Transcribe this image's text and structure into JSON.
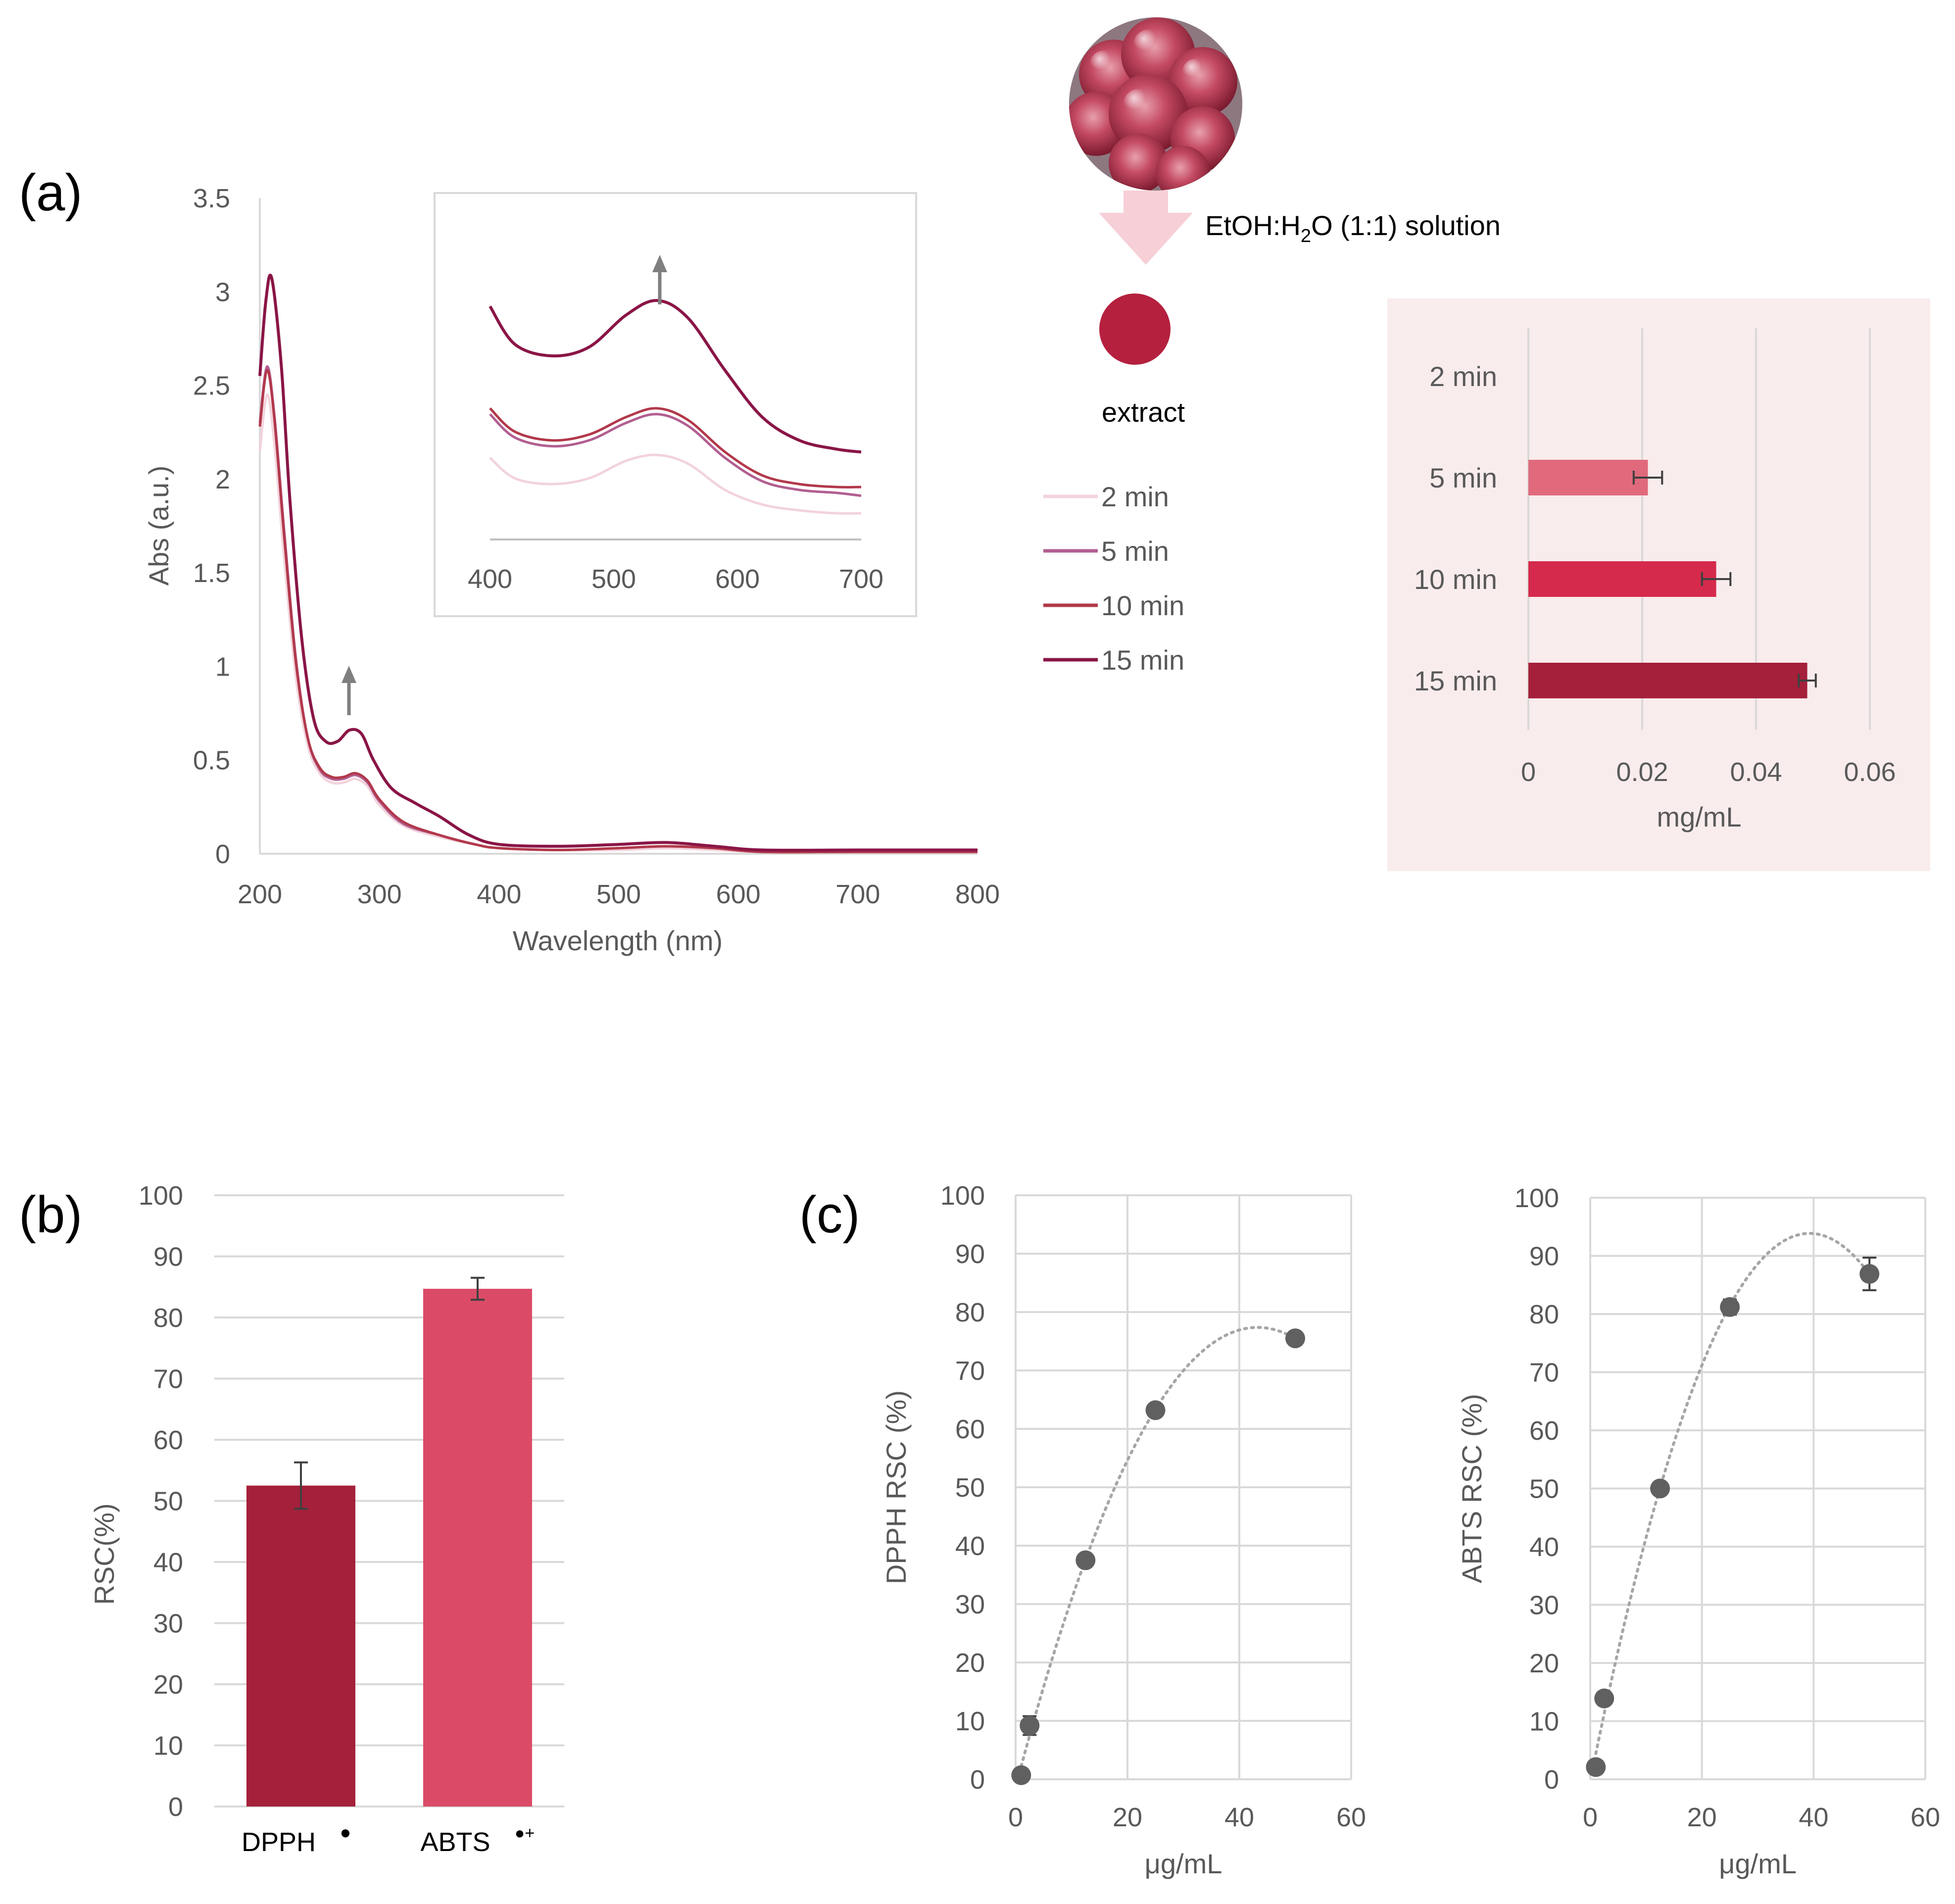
{
  "panel_labels": {
    "a": "(a)",
    "b": "(b)",
    "c": "(c)"
  },
  "schematic": {
    "solution_label_prefix": "EtOH:H",
    "solution_label_sub": "2",
    "solution_label_suffix": "O (1:1) solution",
    "extract_label": "extract",
    "bead_color": "#c44a63",
    "extract_color": "#b5203e",
    "arrow_color": "#f6cfd7"
  },
  "colors": {
    "2 min": "#f2d3dc",
    "5 min": "#b25e91",
    "10 min": "#b2384a",
    "15 min": "#8a1546",
    "bar_5": "#e06a7c",
    "bar_10": "#d52a4b",
    "bar_15": "#a5203a",
    "dpph_bar": "#a5203a",
    "abts_bar": "#db4b67",
    "point": "#606060"
  },
  "chart_data": [
    {
      "id": "uvvis",
      "type": "line",
      "xlabel": "Wavelength (nm)",
      "ylabel": "Abs (a.u.)",
      "xlim": [
        200,
        800
      ],
      "ylim": [
        0,
        3.5
      ],
      "xticks": [
        "200",
        "300",
        "400",
        "500",
        "600",
        "700",
        "800"
      ],
      "yticks": [
        "0",
        "0.5",
        "1",
        "1.5",
        "2",
        "2.5",
        "3",
        "3.5"
      ],
      "legend": [
        "2 min",
        "5 min",
        "10 min",
        "15 min"
      ],
      "series": [
        {
          "name": "2 min",
          "x": [
            200,
            206,
            212,
            220,
            230,
            240,
            250,
            260,
            270,
            280,
            290,
            300,
            320,
            350,
            380,
            400,
            450,
            500,
            540,
            580,
            620,
            700,
            800
          ],
          "y": [
            2.15,
            2.45,
            2.2,
            1.6,
            0.95,
            0.58,
            0.43,
            0.38,
            0.38,
            0.4,
            0.36,
            0.26,
            0.15,
            0.09,
            0.05,
            0.03,
            0.02,
            0.02,
            0.03,
            0.02,
            0.01,
            0.01,
            0.01
          ]
        },
        {
          "name": "5 min",
          "x": [
            200,
            206,
            212,
            220,
            230,
            240,
            250,
            260,
            270,
            280,
            290,
            300,
            320,
            350,
            380,
            400,
            450,
            500,
            540,
            580,
            620,
            700,
            800
          ],
          "y": [
            2.3,
            2.6,
            2.35,
            1.75,
            1.05,
            0.62,
            0.45,
            0.4,
            0.4,
            0.42,
            0.38,
            0.28,
            0.16,
            0.1,
            0.05,
            0.03,
            0.02,
            0.03,
            0.04,
            0.03,
            0.01,
            0.01,
            0.01
          ]
        },
        {
          "name": "10 min",
          "x": [
            200,
            206,
            212,
            220,
            230,
            240,
            250,
            260,
            270,
            280,
            290,
            300,
            320,
            350,
            380,
            400,
            450,
            500,
            540,
            580,
            620,
            700,
            800
          ],
          "y": [
            2.28,
            2.58,
            2.33,
            1.72,
            1.03,
            0.62,
            0.46,
            0.41,
            0.41,
            0.43,
            0.39,
            0.29,
            0.17,
            0.1,
            0.05,
            0.03,
            0.02,
            0.03,
            0.04,
            0.03,
            0.01,
            0.01,
            0.01
          ]
        },
        {
          "name": "15 min",
          "x": [
            200,
            205,
            210,
            218,
            225,
            235,
            245,
            255,
            265,
            275,
            285,
            295,
            310,
            330,
            350,
            375,
            400,
            450,
            500,
            540,
            580,
            620,
            700,
            800
          ],
          "y": [
            2.55,
            2.95,
            3.07,
            2.6,
            1.9,
            1.15,
            0.72,
            0.6,
            0.6,
            0.66,
            0.64,
            0.5,
            0.35,
            0.27,
            0.2,
            0.1,
            0.05,
            0.04,
            0.05,
            0.06,
            0.04,
            0.02,
            0.02,
            0.02
          ]
        }
      ],
      "annotations": [
        "arrow up at 275 nm"
      ]
    },
    {
      "id": "uvvis_inset",
      "type": "line",
      "xlim": [
        400,
        700
      ],
      "xticks": [
        "400",
        "500",
        "600",
        "700"
      ],
      "series": [
        {
          "name": "2 min",
          "x": [
            400,
            420,
            450,
            480,
            510,
            535,
            560,
            590,
            620,
            650,
            680,
            700
          ],
          "y": [
            0.028,
            0.021,
            0.019,
            0.021,
            0.027,
            0.029,
            0.026,
            0.017,
            0.012,
            0.01,
            0.009,
            0.009
          ]
        },
        {
          "name": "5 min",
          "x": [
            400,
            420,
            450,
            480,
            510,
            535,
            560,
            590,
            620,
            650,
            680,
            700
          ],
          "y": [
            0.043,
            0.035,
            0.032,
            0.034,
            0.04,
            0.043,
            0.039,
            0.028,
            0.02,
            0.017,
            0.016,
            0.015
          ]
        },
        {
          "name": "10 min",
          "x": [
            400,
            420,
            450,
            480,
            510,
            535,
            560,
            590,
            620,
            650,
            680,
            700
          ],
          "y": [
            0.045,
            0.037,
            0.034,
            0.036,
            0.042,
            0.045,
            0.041,
            0.03,
            0.022,
            0.019,
            0.018,
            0.018
          ]
        },
        {
          "name": "15 min",
          "x": [
            400,
            420,
            450,
            480,
            510,
            535,
            560,
            590,
            620,
            650,
            680,
            700
          ],
          "y": [
            0.08,
            0.067,
            0.063,
            0.066,
            0.077,
            0.082,
            0.076,
            0.058,
            0.042,
            0.034,
            0.031,
            0.03
          ]
        }
      ],
      "ylim": [
        0,
        0.09
      ],
      "annotations": [
        "arrow up at 535 nm"
      ]
    },
    {
      "id": "content",
      "type": "bar",
      "orientation": "horizontal",
      "categories": [
        "2 min",
        "5 min",
        "10 min",
        "15 min"
      ],
      "values": [
        0,
        0.021,
        0.033,
        0.049
      ],
      "errors": [
        0,
        0.0025,
        0.0025,
        0.0015
      ],
      "xlabel": "mg/mL",
      "xlim": [
        0,
        0.06
      ],
      "xticks": [
        "0",
        "0.02",
        "0.04",
        "0.06"
      ]
    },
    {
      "id": "rsc",
      "type": "bar",
      "categories": [
        "DPPH",
        "ABTS"
      ],
      "superscripts": [
        "●",
        "●+"
      ],
      "values": [
        52.5,
        84.7
      ],
      "errors": [
        3.8,
        1.8
      ],
      "ylabel": "RSC(%)",
      "ylim": [
        0,
        100
      ],
      "yticks": [
        "0",
        "10",
        "20",
        "30",
        "40",
        "50",
        "60",
        "70",
        "80",
        "90",
        "100"
      ]
    },
    {
      "id": "dpph_dose",
      "type": "scatter",
      "x": [
        1,
        2.5,
        12.5,
        25,
        50
      ],
      "y": [
        0.7,
        9.2,
        37.5,
        63.2,
        75.5
      ],
      "errors": [
        0.5,
        1.6,
        0.9,
        0.7,
        0.6
      ],
      "trend": "polynomial",
      "xlabel": "μg/mL",
      "ylabel": "DPPH RSC (%)",
      "xlim": [
        0,
        60
      ],
      "ylim": [
        0,
        100
      ],
      "xticks": [
        "0",
        "20",
        "40",
        "60"
      ],
      "yticks": [
        "0",
        "10",
        "20",
        "30",
        "40",
        "50",
        "60",
        "70",
        "80",
        "90",
        "100"
      ]
    },
    {
      "id": "abts_dose",
      "type": "scatter",
      "x": [
        1,
        2.5,
        12.5,
        25,
        50
      ],
      "y": [
        2.1,
        13.9,
        50,
        81.2,
        86.9
      ],
      "errors": [
        0.5,
        0.8,
        0.8,
        1.3,
        2.8
      ],
      "trend": "polynomial",
      "xlabel": "μg/mL",
      "ylabel": "ABTS RSC (%)",
      "xlim": [
        0,
        60
      ],
      "ylim": [
        0,
        100
      ],
      "xticks": [
        "0",
        "20",
        "40",
        "60"
      ],
      "yticks": [
        "0",
        "10",
        "20",
        "30",
        "40",
        "50",
        "60",
        "70",
        "80",
        "90",
        "100"
      ]
    }
  ]
}
